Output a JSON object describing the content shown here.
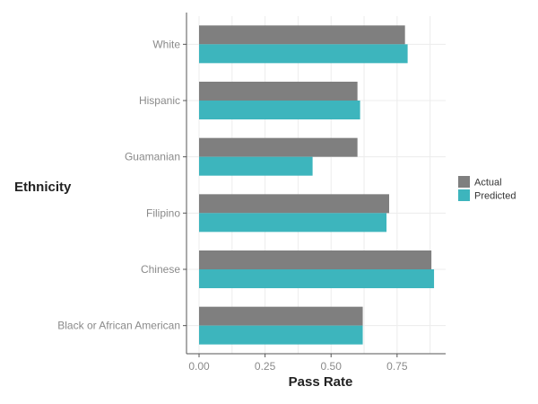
{
  "chart_data": {
    "type": "bar",
    "orientation": "horizontal",
    "categories": [
      "White",
      "Hispanic",
      "Guamanian",
      "Filipino",
      "Chinese",
      "Black or African American"
    ],
    "series": [
      {
        "name": "Actual",
        "color": "#7f7f7f",
        "values": [
          0.78,
          0.6,
          0.6,
          0.72,
          0.88,
          0.62
        ]
      },
      {
        "name": "Predicted",
        "color": "#3db5bd",
        "values": [
          0.79,
          0.61,
          0.43,
          0.71,
          0.89,
          0.62
        ]
      }
    ],
    "xlabel": "Pass Rate",
    "ylabel": "Ethnicity",
    "xlim": [
      0,
      0.9
    ],
    "xticks": [
      {
        "value": 0.0,
        "label": "0.00"
      },
      {
        "value": 0.25,
        "label": "0.25"
      },
      {
        "value": 0.5,
        "label": "0.50"
      },
      {
        "value": 0.75,
        "label": "0.75"
      }
    ],
    "grid": true,
    "legend_position": "right"
  }
}
